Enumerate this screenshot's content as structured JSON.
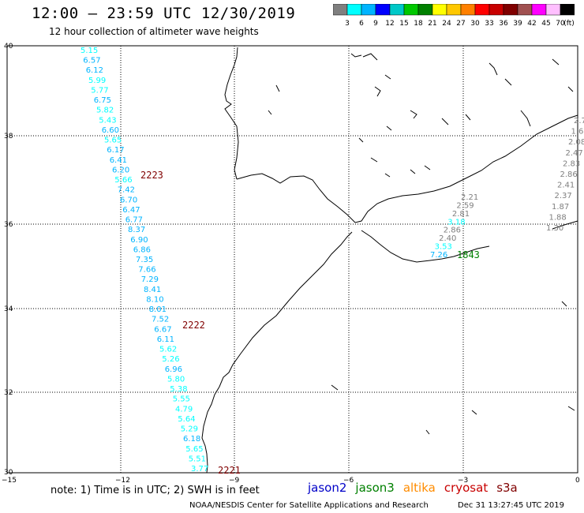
{
  "header": {
    "title": "12:00 — 23:59 UTC 12/30/2019",
    "subtitle": "12 hour collection of altimeter wave heights"
  },
  "legend_scale": {
    "labels": [
      "3",
      "6",
      "9",
      "12",
      "15",
      "18",
      "21",
      "24",
      "27",
      "30",
      "33",
      "36",
      "39",
      "42",
      "45",
      "70",
      "(ft)"
    ],
    "colors": [
      "#7f7f7f",
      "#00ffff",
      "#00b4ff",
      "#0000ff",
      "#00c8c8",
      "#00c800",
      "#008000",
      "#ffff00",
      "#ffc800",
      "#ff8000",
      "#ff0000",
      "#c80000",
      "#800000",
      "#a05050",
      "#ff00ff",
      "#ffbfff",
      "#000000"
    ]
  },
  "axes": {
    "lon_labels": [
      "−15",
      "−12",
      "−9",
      "−6",
      "−3",
      "0"
    ],
    "lat_labels": [
      "40",
      "38",
      "36",
      "34",
      "32",
      "30"
    ],
    "xlim": [
      -15,
      0
    ],
    "ylim": [
      30,
      40
    ]
  },
  "tracks": {
    "cryosat_labels": [
      "2223",
      "2222",
      "2221"
    ],
    "jason3_label": "1843",
    "main_track_values": [
      "5.15",
      "6.57",
      "6.12",
      "5.99",
      "5.77",
      "6.75",
      "5.82",
      "5.43",
      "6.60",
      "5.65",
      "6.17",
      "6.41",
      "6.20",
      "5.66",
      "7.42",
      "6.70",
      "6.47",
      "6.77",
      "8.37",
      "6.90",
      "6.86",
      "7.35",
      "7.66",
      "7.29",
      "8.41",
      "8.10",
      "8.01",
      "7.52",
      "6.67",
      "6.11",
      "5.62",
      "5.26",
      "6.96",
      "5.80",
      "5.38",
      "5.55",
      "4.79",
      "5.64",
      "5.29",
      "6.18",
      "5.65",
      "5.51",
      "3.77"
    ],
    "right_track_values": [
      "2.7",
      "1.6",
      "2.08",
      "2.47",
      "2.83",
      "2.86",
      "2.41",
      "2.37",
      "1.87",
      "1.88",
      "1.30"
    ],
    "med_track_values": [
      "2.21",
      "2.59",
      "2.81",
      "3.18",
      "2.86",
      "2.40",
      "3.53",
      "7.26"
    ]
  },
  "footer": {
    "note": "note: 1) Time is in UTC; 2) SWH is in feet",
    "satellites": [
      {
        "name": "jason2",
        "color": "#0000c8"
      },
      {
        "name": "jason3",
        "color": "#008000"
      },
      {
        "name": "altika",
        "color": "#ff8c00"
      },
      {
        "name": "cryosat",
        "color": "#c80000"
      },
      {
        "name": "s3a",
        "color": "#800000"
      }
    ],
    "credit": "NOAA/NESDIS Center for Satellite Applications and Research",
    "timestamp": "Dec 31 13:27:45 UTC 2019"
  }
}
